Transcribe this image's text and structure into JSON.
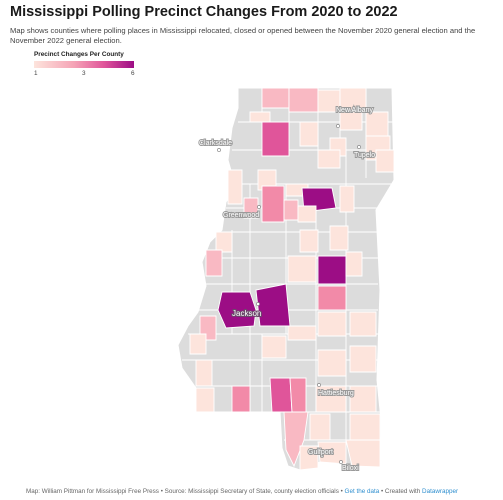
{
  "title": "Mississippi Polling Precinct Changes From 2020 to 2022",
  "description": "Map shows counties where polling places in Mississippi relocated, closed or opened between the November 2020 general election and the November 2022 general election.",
  "legend": {
    "title": "Precinct Changes Per County",
    "min_label": "1",
    "mid_label": "3",
    "max_label": "6"
  },
  "colors": {
    "none": "#dcdcdc",
    "c1": "#fde4dc",
    "c2": "#f9b9c3",
    "c3": "#f28aa8",
    "c4": "#e0559a",
    "c6": "#9c0d85",
    "border": "#ffffff"
  },
  "cities": [
    {
      "name": "New Albany"
    },
    {
      "name": "Clarksdale"
    },
    {
      "name": "Tupelo"
    },
    {
      "name": "Greenwood"
    },
    {
      "name": "Jackson"
    },
    {
      "name": "Hattiesburg"
    },
    {
      "name": "Gulfport"
    },
    {
      "name": "Biloxi"
    }
  ],
  "footer": {
    "credit": "Map: William Pittman for Mississippi Free Press • Source: Mississippi Secretary of State, county election officials • ",
    "get_data": "Get the data",
    "separator": " • Created with ",
    "tool": "Datawrapper"
  }
}
